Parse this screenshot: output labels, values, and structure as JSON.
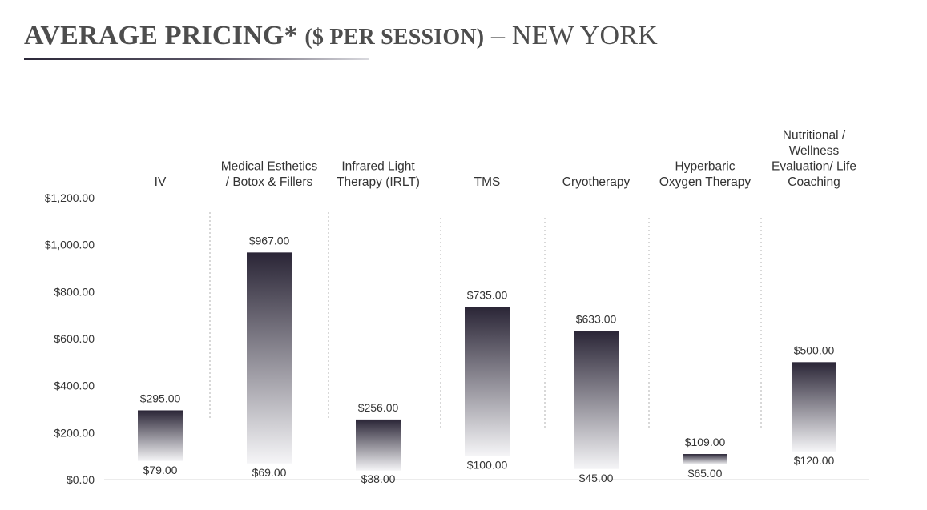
{
  "title": {
    "part1": "AVERAGE PRICING*",
    "part2": "($ PER SESSION)",
    "part3": "– NEW YORK"
  },
  "chart_data": {
    "type": "bar",
    "title": "AVERAGE PRICING* ($ PER SESSION) – NEW YORK",
    "ylim": [
      0,
      1200
    ],
    "y_ticks": [
      "$0.00",
      "$200.00",
      "$400.00",
      "$600.00",
      "$800.00",
      "$1,000.00",
      "$1,200.00"
    ],
    "categories": [
      [
        "IV"
      ],
      [
        "Medical Esthetics",
        "/ Botox & Fillers"
      ],
      [
        "Infrared Light",
        "Therapy (IRLT)"
      ],
      [
        "TMS"
      ],
      [
        "Cryotherapy"
      ],
      [
        "Hyperbaric",
        "Oxygen Therapy"
      ],
      [
        "Nutritional /",
        "Wellness",
        "Evaluation/ Life",
        "Coaching"
      ]
    ],
    "low_values": [
      79,
      69,
      38,
      100,
      45,
      65,
      120
    ],
    "high_values": [
      295,
      967,
      256,
      735,
      633,
      109,
      500
    ],
    "low_labels": [
      "$79.00",
      "$69.00",
      "$38.00",
      "$100.00",
      "$45.00",
      "$65.00",
      "$120.00"
    ],
    "high_labels": [
      "$295.00",
      "$967.00",
      "$256.00",
      "$735.00",
      "$633.00",
      "$109.00",
      "$500.00"
    ],
    "colors": {
      "bar_top": "#2a2536",
      "bar_bottom": "#f5f5f7",
      "axis": "#d9d9d9",
      "separator": "#c8c8c8"
    }
  }
}
